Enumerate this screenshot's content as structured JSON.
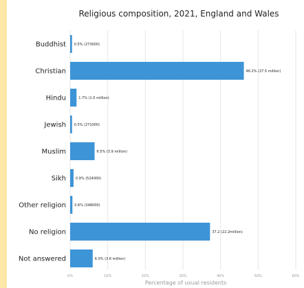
{
  "colors": {
    "bar": "#3d94d6",
    "background": "#ffffff",
    "left_strip": "#fde7a8",
    "grid": "#e6e6e6",
    "text": "#222222",
    "muted_text": "#9a9a9a"
  },
  "chart_data": {
    "type": "bar",
    "orientation": "horizontal",
    "title": "Religious composition, 2021, England and Wales",
    "xlabel": "Percentage of usual residents",
    "ylabel": "",
    "xlim": [
      0,
      60
    ],
    "grid": true,
    "x_ticks": [
      "0%",
      "10%",
      "20%",
      "30%",
      "40%",
      "50%",
      "60%"
    ],
    "categories": [
      "Buddhist",
      "Christian",
      "Hindu",
      "Jewish",
      "Muslim",
      "Sikh",
      "Other religion",
      "No religion",
      "Not answered"
    ],
    "values": [
      0.5,
      46.2,
      1.7,
      0.5,
      6.5,
      0.9,
      0.6,
      37.2,
      6.0
    ],
    "data_labels": [
      "0.5% (273000)",
      "46.2% (27.5 million)",
      "1.7% (1.0 million)",
      "0.5% (271000)",
      "6.5% (3.9 million)",
      "0.9% (524000)",
      "0.6% (348000)",
      "37.2 (22.2million)",
      "6.0% (3.6 million)"
    ]
  }
}
